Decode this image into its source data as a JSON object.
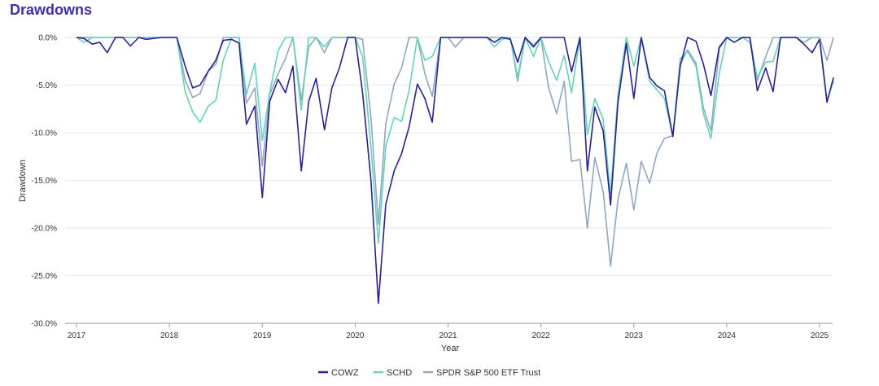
{
  "title": "Drawdowns",
  "chart_data": {
    "type": "line",
    "xlabel": "Year",
    "ylabel": "Drawdown",
    "xlim": [
      2017.0,
      2025.15
    ],
    "ylim": [
      -30,
      0
    ],
    "x_ticks": [
      2017,
      2018,
      2019,
      2020,
      2021,
      2022,
      2023,
      2024,
      2025
    ],
    "x_tick_labels": [
      "2017",
      "2018",
      "2019",
      "2020",
      "2021",
      "2022",
      "2023",
      "2024",
      "2025"
    ],
    "y_ticks": [
      0,
      -5,
      -10,
      -15,
      -20,
      -25,
      -30
    ],
    "y_tick_labels": [
      "0.0%",
      "-5.0%",
      "-10.0%",
      "-15.0%",
      "-20.0%",
      "-25.0%",
      "-30.0%"
    ],
    "grid": "horizontal",
    "legend_position": "bottom",
    "series": [
      {
        "name": "COWZ",
        "color": "#2a1fa0",
        "points": [
          [
            2017.0,
            0
          ],
          [
            2017.08,
            -0.1
          ],
          [
            2017.17,
            -0.7
          ],
          [
            2017.25,
            -0.5
          ],
          [
            2017.33,
            -1.6
          ],
          [
            2017.42,
            0
          ],
          [
            2017.5,
            0
          ],
          [
            2017.58,
            -0.9
          ],
          [
            2017.67,
            0
          ],
          [
            2017.75,
            -0.2
          ],
          [
            2017.83,
            -0.1
          ],
          [
            2017.92,
            0
          ],
          [
            2018.0,
            0
          ],
          [
            2018.08,
            0
          ],
          [
            2018.17,
            -3.0
          ],
          [
            2018.25,
            -5.3
          ],
          [
            2018.33,
            -5.0
          ],
          [
            2018.42,
            -3.5
          ],
          [
            2018.5,
            -2.4
          ],
          [
            2018.58,
            -0.3
          ],
          [
            2018.67,
            -0.2
          ],
          [
            2018.75,
            -0.6
          ],
          [
            2018.83,
            -9.1
          ],
          [
            2018.92,
            -7.2
          ],
          [
            2019.0,
            -16.8
          ],
          [
            2019.08,
            -6.7
          ],
          [
            2019.17,
            -4.4
          ],
          [
            2019.25,
            -5.8
          ],
          [
            2019.33,
            -3.0
          ],
          [
            2019.42,
            -14.0
          ],
          [
            2019.5,
            -6.7
          ],
          [
            2019.58,
            -4.3
          ],
          [
            2019.67,
            -9.7
          ],
          [
            2019.75,
            -5.3
          ],
          [
            2019.83,
            -3.2
          ],
          [
            2019.92,
            0
          ],
          [
            2020.0,
            0
          ],
          [
            2020.08,
            -5.8
          ],
          [
            2020.17,
            -15.0
          ],
          [
            2020.25,
            -27.9
          ],
          [
            2020.33,
            -17.5
          ],
          [
            2020.42,
            -14.0
          ],
          [
            2020.5,
            -12.2
          ],
          [
            2020.58,
            -9.4
          ],
          [
            2020.67,
            -4.9
          ],
          [
            2020.75,
            -6.4
          ],
          [
            2020.83,
            -8.9
          ],
          [
            2020.92,
            0
          ],
          [
            2021.0,
            0
          ],
          [
            2021.08,
            0
          ],
          [
            2021.17,
            0
          ],
          [
            2021.25,
            0
          ],
          [
            2021.33,
            0
          ],
          [
            2021.42,
            0
          ],
          [
            2021.5,
            -0.5
          ],
          [
            2021.58,
            0
          ],
          [
            2021.67,
            -0.2
          ],
          [
            2021.75,
            -2.6
          ],
          [
            2021.83,
            0
          ],
          [
            2021.92,
            -1.0
          ],
          [
            2022.0,
            0
          ],
          [
            2022.08,
            0
          ],
          [
            2022.17,
            0
          ],
          [
            2022.25,
            0
          ],
          [
            2022.33,
            -3.6
          ],
          [
            2022.42,
            0
          ],
          [
            2022.5,
            -14.0
          ],
          [
            2022.58,
            -7.3
          ],
          [
            2022.67,
            -9.8
          ],
          [
            2022.75,
            -17.6
          ],
          [
            2022.83,
            -6.8
          ],
          [
            2022.92,
            -0.6
          ],
          [
            2023.0,
            -6.4
          ],
          [
            2023.08,
            0
          ],
          [
            2023.17,
            -4.2
          ],
          [
            2023.25,
            -5.1
          ],
          [
            2023.33,
            -5.6
          ],
          [
            2023.42,
            -10.4
          ],
          [
            2023.5,
            -3.0
          ],
          [
            2023.58,
            0
          ],
          [
            2023.67,
            -0.4
          ],
          [
            2023.75,
            -2.8
          ],
          [
            2023.83,
            -6.1
          ],
          [
            2023.92,
            -1.0
          ],
          [
            2024.0,
            0
          ],
          [
            2024.08,
            -0.5
          ],
          [
            2024.17,
            0
          ],
          [
            2024.25,
            0
          ],
          [
            2024.33,
            -5.6
          ],
          [
            2024.42,
            -3.2
          ],
          [
            2024.5,
            -5.7
          ],
          [
            2024.58,
            0
          ],
          [
            2024.67,
            0
          ],
          [
            2024.75,
            0
          ],
          [
            2024.83,
            -0.7
          ],
          [
            2024.92,
            -1.6
          ],
          [
            2025.0,
            -0.2
          ],
          [
            2025.08,
            -6.8
          ],
          [
            2025.15,
            -4.2
          ]
        ]
      },
      {
        "name": "SCHD",
        "color": "#5fd6b6",
        "points": [
          [
            2017.0,
            0
          ],
          [
            2017.08,
            -0.5
          ],
          [
            2017.17,
            0
          ],
          [
            2017.25,
            0
          ],
          [
            2017.33,
            0
          ],
          [
            2017.42,
            0
          ],
          [
            2017.5,
            0
          ],
          [
            2017.58,
            0
          ],
          [
            2017.67,
            0
          ],
          [
            2017.75,
            0
          ],
          [
            2017.83,
            0
          ],
          [
            2017.92,
            0
          ],
          [
            2018.0,
            0
          ],
          [
            2018.08,
            0
          ],
          [
            2018.17,
            -5.7
          ],
          [
            2018.25,
            -7.8
          ],
          [
            2018.33,
            -8.9
          ],
          [
            2018.42,
            -7.2
          ],
          [
            2018.5,
            -6.6
          ],
          [
            2018.58,
            -2.4
          ],
          [
            2018.67,
            0
          ],
          [
            2018.75,
            0
          ],
          [
            2018.83,
            -6.0
          ],
          [
            2018.92,
            -2.7
          ],
          [
            2019.0,
            -10.8
          ],
          [
            2019.08,
            -5.8
          ],
          [
            2019.17,
            -1.4
          ],
          [
            2019.25,
            0
          ],
          [
            2019.33,
            0
          ],
          [
            2019.42,
            -7.6
          ],
          [
            2019.5,
            0
          ],
          [
            2019.58,
            0
          ],
          [
            2019.67,
            -1.0
          ],
          [
            2019.75,
            0
          ],
          [
            2019.83,
            0
          ],
          [
            2019.92,
            0
          ],
          [
            2020.0,
            0
          ],
          [
            2020.08,
            -2.0
          ],
          [
            2020.17,
            -11.5
          ],
          [
            2020.25,
            -21.6
          ],
          [
            2020.33,
            -11.4
          ],
          [
            2020.42,
            -8.4
          ],
          [
            2020.5,
            -8.8
          ],
          [
            2020.58,
            -5.6
          ],
          [
            2020.67,
            0
          ],
          [
            2020.75,
            -2.4
          ],
          [
            2020.83,
            -2.0
          ],
          [
            2020.92,
            0
          ],
          [
            2021.0,
            0
          ],
          [
            2021.08,
            0
          ],
          [
            2021.17,
            0
          ],
          [
            2021.25,
            0
          ],
          [
            2021.33,
            0
          ],
          [
            2021.42,
            0
          ],
          [
            2021.5,
            -1.0
          ],
          [
            2021.58,
            -0.2
          ],
          [
            2021.67,
            0
          ],
          [
            2021.75,
            -4.2
          ],
          [
            2021.83,
            0
          ],
          [
            2021.92,
            -2.0
          ],
          [
            2022.0,
            0
          ],
          [
            2022.08,
            -2.5
          ],
          [
            2022.17,
            -4.5
          ],
          [
            2022.25,
            -1.9
          ],
          [
            2022.33,
            -5.8
          ],
          [
            2022.42,
            0
          ],
          [
            2022.5,
            -10.2
          ],
          [
            2022.58,
            -6.4
          ],
          [
            2022.67,
            -8.6
          ],
          [
            2022.75,
            -16.4
          ],
          [
            2022.83,
            -6.0
          ],
          [
            2022.92,
            0
          ],
          [
            2023.0,
            -3.0
          ],
          [
            2023.08,
            0
          ],
          [
            2023.17,
            -4.6
          ],
          [
            2023.25,
            -5.5
          ],
          [
            2023.33,
            -6.4
          ],
          [
            2023.42,
            -10.4
          ],
          [
            2023.5,
            -2.2
          ],
          [
            2023.58,
            -1.5
          ],
          [
            2023.67,
            -3.0
          ],
          [
            2023.75,
            -8.0
          ],
          [
            2023.83,
            -10.6
          ],
          [
            2023.92,
            -3.8
          ],
          [
            2024.0,
            0
          ],
          [
            2024.08,
            0
          ],
          [
            2024.17,
            0
          ],
          [
            2024.25,
            -0.5
          ],
          [
            2024.33,
            -4.2
          ],
          [
            2024.42,
            -2.6
          ],
          [
            2024.5,
            -2.5
          ],
          [
            2024.58,
            0
          ],
          [
            2024.67,
            0
          ],
          [
            2024.75,
            0
          ],
          [
            2024.83,
            0
          ],
          [
            2024.92,
            0
          ],
          [
            2025.0,
            0
          ],
          [
            2025.08,
            -6.6
          ],
          [
            2025.15,
            -4.6
          ]
        ]
      },
      {
        "name": "SPDR S&P 500 ETF Trust",
        "color": "#8ea8c4",
        "points": [
          [
            2017.0,
            0
          ],
          [
            2017.08,
            0
          ],
          [
            2017.17,
            0
          ],
          [
            2017.25,
            0
          ],
          [
            2017.33,
            0
          ],
          [
            2017.42,
            0
          ],
          [
            2017.5,
            0
          ],
          [
            2017.58,
            0
          ],
          [
            2017.67,
            0
          ],
          [
            2017.75,
            0
          ],
          [
            2017.83,
            0
          ],
          [
            2017.92,
            0
          ],
          [
            2018.0,
            0
          ],
          [
            2018.08,
            0
          ],
          [
            2018.17,
            -4.5
          ],
          [
            2018.25,
            -6.3
          ],
          [
            2018.33,
            -5.9
          ],
          [
            2018.42,
            -3.5
          ],
          [
            2018.5,
            -2.8
          ],
          [
            2018.58,
            0
          ],
          [
            2018.67,
            0
          ],
          [
            2018.75,
            0
          ],
          [
            2018.83,
            -6.9
          ],
          [
            2018.92,
            -5.3
          ],
          [
            2019.0,
            -13.5
          ],
          [
            2019.08,
            -6.0
          ],
          [
            2019.17,
            -3.8
          ],
          [
            2019.25,
            -2.2
          ],
          [
            2019.33,
            0
          ],
          [
            2019.42,
            -6.6
          ],
          [
            2019.5,
            -1.0
          ],
          [
            2019.58,
            0
          ],
          [
            2019.67,
            -1.6
          ],
          [
            2019.75,
            0
          ],
          [
            2019.83,
            0
          ],
          [
            2019.92,
            0
          ],
          [
            2020.0,
            0
          ],
          [
            2020.08,
            -0.2
          ],
          [
            2020.17,
            -8.4
          ],
          [
            2020.25,
            -19.6
          ],
          [
            2020.33,
            -9.0
          ],
          [
            2020.42,
            -4.9
          ],
          [
            2020.5,
            -3.2
          ],
          [
            2020.58,
            0
          ],
          [
            2020.67,
            0
          ],
          [
            2020.75,
            -3.8
          ],
          [
            2020.83,
            -6.2
          ],
          [
            2020.92,
            0
          ],
          [
            2021.0,
            0
          ],
          [
            2021.08,
            -1.0
          ],
          [
            2021.17,
            0
          ],
          [
            2021.25,
            0
          ],
          [
            2021.33,
            0
          ],
          [
            2021.42,
            0
          ],
          [
            2021.5,
            0
          ],
          [
            2021.58,
            0
          ],
          [
            2021.67,
            0
          ],
          [
            2021.75,
            -4.6
          ],
          [
            2021.83,
            0
          ],
          [
            2021.92,
            -0.8
          ],
          [
            2022.0,
            0
          ],
          [
            2022.08,
            -5.2
          ],
          [
            2022.17,
            -8.0
          ],
          [
            2022.25,
            -4.6
          ],
          [
            2022.33,
            -13.0
          ],
          [
            2022.42,
            -12.8
          ],
          [
            2022.5,
            -20.0
          ],
          [
            2022.58,
            -12.6
          ],
          [
            2022.67,
            -16.2
          ],
          [
            2022.75,
            -24.0
          ],
          [
            2022.83,
            -17.0
          ],
          [
            2022.92,
            -13.2
          ],
          [
            2023.0,
            -18.1
          ],
          [
            2023.08,
            -13.0
          ],
          [
            2023.17,
            -15.3
          ],
          [
            2023.25,
            -12.1
          ],
          [
            2023.33,
            -10.6
          ],
          [
            2023.42,
            -10.3
          ],
          [
            2023.5,
            -2.8
          ],
          [
            2023.58,
            -1.3
          ],
          [
            2023.67,
            -2.7
          ],
          [
            2023.75,
            -7.4
          ],
          [
            2023.83,
            -9.8
          ],
          [
            2023.92,
            -1.2
          ],
          [
            2024.0,
            0
          ],
          [
            2024.08,
            0
          ],
          [
            2024.17,
            0
          ],
          [
            2024.25,
            0
          ],
          [
            2024.33,
            -4.5
          ],
          [
            2024.42,
            -2.0
          ],
          [
            2024.5,
            0
          ],
          [
            2024.58,
            0
          ],
          [
            2024.67,
            0
          ],
          [
            2024.75,
            0
          ],
          [
            2024.83,
            -0.5
          ],
          [
            2024.92,
            0
          ],
          [
            2025.0,
            0
          ],
          [
            2025.08,
            -2.4
          ],
          [
            2025.15,
            0
          ]
        ]
      }
    ]
  }
}
